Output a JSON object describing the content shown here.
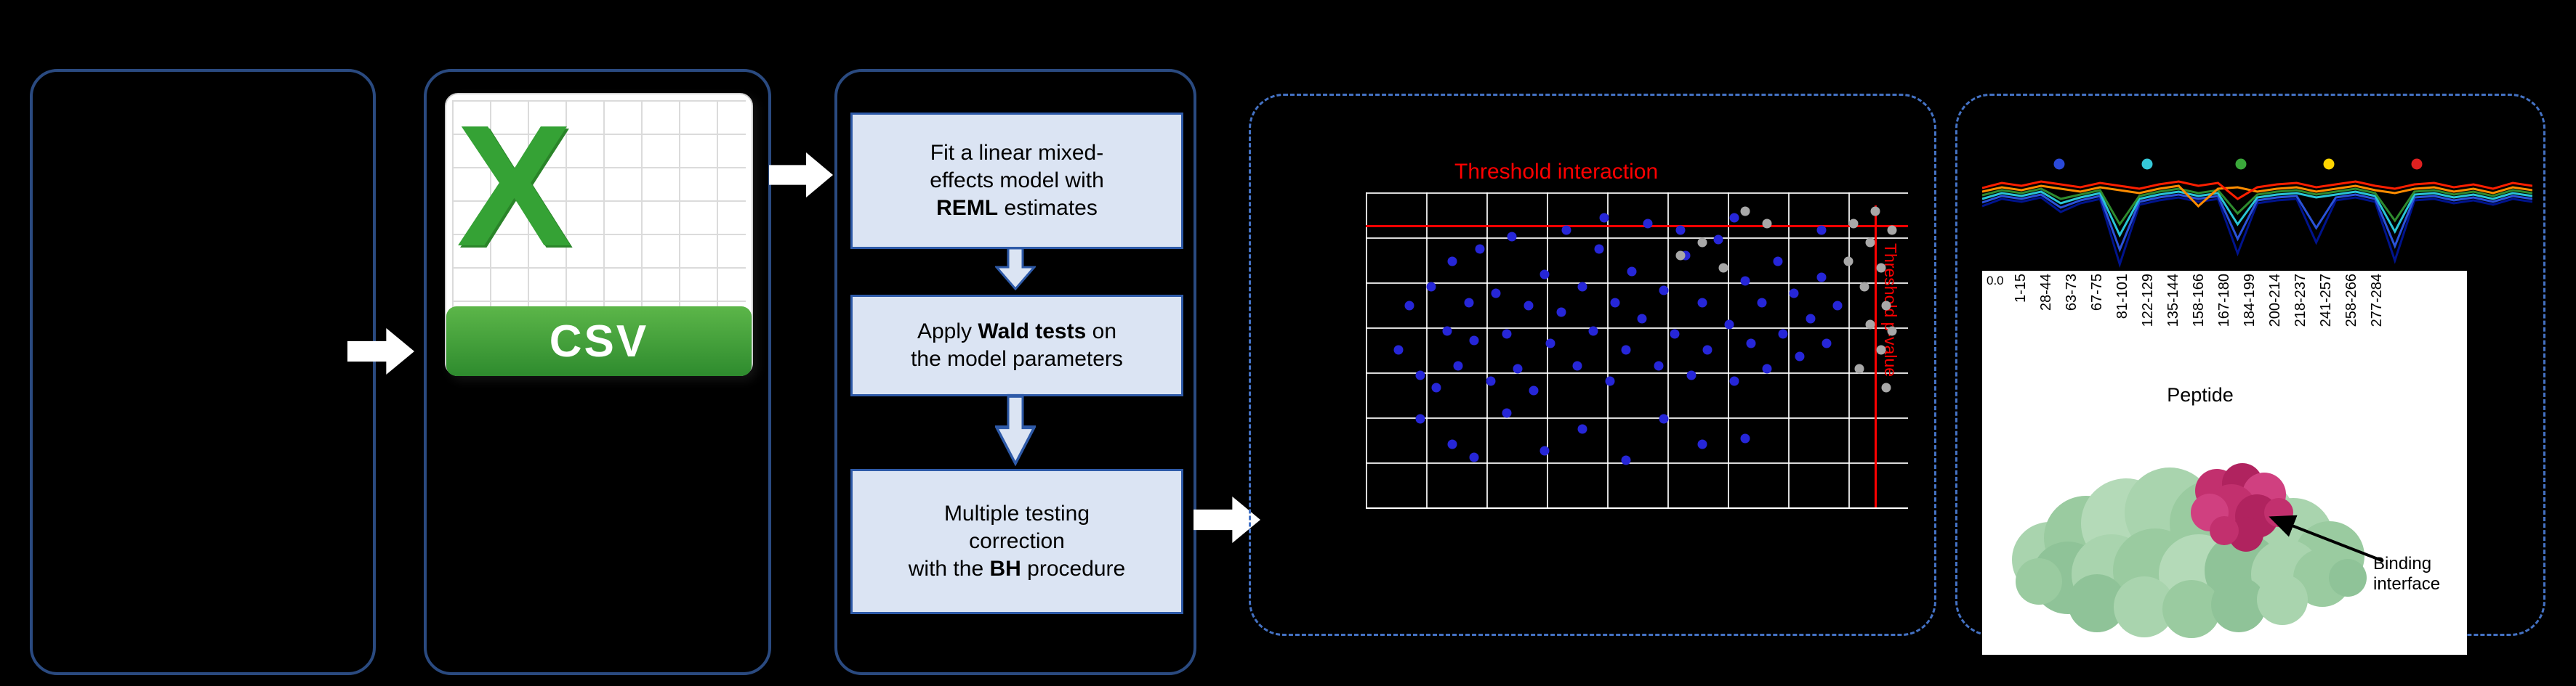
{
  "colors": {
    "background": "#000000",
    "solid_box_border": "#2a4a80",
    "dashed_box_border": "#4472c4",
    "step_fill": "#dbe4f3",
    "step_border": "#2e5aa8",
    "threshold_red": "#ff0000",
    "excel_green": "#35a235",
    "csv_banner_green": "#3e9b35",
    "scatter_blue": "#2626d8",
    "scatter_gray": "#a8a8a8"
  },
  "csv": {
    "x_glyph": "X",
    "label": "CSV"
  },
  "steps": {
    "s1": {
      "l1": "Fit a linear mixed-",
      "l2": "effects model with",
      "l3b": "REML",
      "l3": " estimates"
    },
    "s2": {
      "l1a": "Apply ",
      "l1b": "Wald tests",
      "l1c": " on",
      "l2": "the model parameters"
    },
    "s3": {
      "l1": "Multiple testing",
      "l2": "correction",
      "l3a": "with the ",
      "l3b": "BH",
      "l3c": " procedure"
    }
  },
  "volcano": {
    "title": "Threshold interaction",
    "y_threshold_label": "Threshold p-value",
    "points": [
      [
        6,
        50,
        "b"
      ],
      [
        8,
        36,
        "b"
      ],
      [
        10,
        58,
        "b"
      ],
      [
        12,
        30,
        "b"
      ],
      [
        13,
        62,
        "b"
      ],
      [
        15,
        44,
        "b"
      ],
      [
        16,
        22,
        "b"
      ],
      [
        17,
        55,
        "b"
      ],
      [
        19,
        35,
        "b"
      ],
      [
        20,
        47,
        "b"
      ],
      [
        21,
        18,
        "b"
      ],
      [
        23,
        60,
        "b"
      ],
      [
        24,
        32,
        "b"
      ],
      [
        26,
        45,
        "b"
      ],
      [
        27,
        14,
        "b"
      ],
      [
        28,
        56,
        "b"
      ],
      [
        30,
        36,
        "b"
      ],
      [
        31,
        63,
        "b"
      ],
      [
        33,
        26,
        "b"
      ],
      [
        34,
        48,
        "b"
      ],
      [
        36,
        38,
        "b"
      ],
      [
        37,
        12,
        "b"
      ],
      [
        39,
        55,
        "b"
      ],
      [
        40,
        30,
        "b"
      ],
      [
        42,
        44,
        "b"
      ],
      [
        43,
        18,
        "b"
      ],
      [
        45,
        60,
        "b"
      ],
      [
        46,
        35,
        "b"
      ],
      [
        48,
        50,
        "b"
      ],
      [
        49,
        25,
        "b"
      ],
      [
        51,
        40,
        "b"
      ],
      [
        52,
        10,
        "b"
      ],
      [
        54,
        55,
        "b"
      ],
      [
        55,
        31,
        "b"
      ],
      [
        57,
        45,
        "b"
      ],
      [
        59,
        20,
        "b"
      ],
      [
        60,
        58,
        "b"
      ],
      [
        62,
        35,
        "b"
      ],
      [
        63,
        50,
        "b"
      ],
      [
        65,
        15,
        "b"
      ],
      [
        67,
        42,
        "b"
      ],
      [
        68,
        60,
        "b"
      ],
      [
        70,
        28,
        "b"
      ],
      [
        71,
        48,
        "b"
      ],
      [
        73,
        35,
        "b"
      ],
      [
        74,
        56,
        "b"
      ],
      [
        76,
        22,
        "b"
      ],
      [
        77,
        45,
        "b"
      ],
      [
        79,
        32,
        "b"
      ],
      [
        80,
        52,
        "b"
      ],
      [
        82,
        40,
        "b"
      ],
      [
        84,
        27,
        "b"
      ],
      [
        85,
        48,
        "b"
      ],
      [
        87,
        36,
        "b"
      ],
      [
        16,
        80,
        "b"
      ],
      [
        20,
        84,
        "b"
      ],
      [
        33,
        82,
        "b"
      ],
      [
        48,
        85,
        "b"
      ],
      [
        62,
        80,
        "b"
      ],
      [
        10,
        72,
        "b"
      ],
      [
        40,
        75,
        "b"
      ],
      [
        55,
        72,
        "b"
      ],
      [
        70,
        78,
        "b"
      ],
      [
        26,
        70,
        "b"
      ],
      [
        58,
        12,
        "b"
      ],
      [
        44,
        8,
        "b"
      ],
      [
        68,
        8,
        "b"
      ],
      [
        84,
        12,
        "b"
      ],
      [
        90,
        10,
        "g"
      ],
      [
        93,
        16,
        "g"
      ],
      [
        95,
        24,
        "g"
      ],
      [
        92,
        30,
        "g"
      ],
      [
        96,
        36,
        "g"
      ],
      [
        93,
        42,
        "g"
      ],
      [
        95,
        50,
        "g"
      ],
      [
        91,
        56,
        "g"
      ],
      [
        97,
        12,
        "g"
      ],
      [
        94,
        6,
        "g"
      ],
      [
        89,
        22,
        "g"
      ],
      [
        96,
        62,
        "g"
      ],
      [
        62,
        16,
        "g"
      ],
      [
        66,
        24,
        "g"
      ],
      [
        58,
        20,
        "g"
      ],
      [
        74,
        10,
        "g"
      ],
      [
        70,
        6,
        "g"
      ],
      [
        97,
        44,
        "g"
      ]
    ]
  },
  "profile_chart": {
    "type": "line",
    "y_tick": "0.0",
    "x_title": "Peptide",
    "x_labels": [
      "1-15",
      "28-44",
      "63-73",
      "67-75",
      "81-101",
      "122-129",
      "135-144",
      "158-166",
      "167-180",
      "184-199",
      "200-214",
      "218-237",
      "241-257",
      "258-266",
      "277-284"
    ],
    "markers": [
      {
        "color": "#2a49d8",
        "x": 106
      },
      {
        "color": "#35c8d8",
        "x": 227
      },
      {
        "color": "#3aa83a",
        "x": 356
      },
      {
        "color": "#ffd400",
        "x": 477
      },
      {
        "color": "#e02020",
        "x": 598
      }
    ],
    "series": [
      {
        "name": "navy",
        "color": "#00138c",
        "values": [
          70,
          60,
          64,
          58,
          78,
          66,
          60,
          150,
          68,
          62,
          58,
          64,
          60,
          135,
          66,
          62,
          60,
          120,
          62,
          58,
          64,
          145,
          62,
          60,
          66,
          62,
          68,
          60,
          64
        ]
      },
      {
        "name": "blue",
        "color": "#2a52d8",
        "values": [
          65,
          56,
          60,
          54,
          72,
          62,
          56,
          130,
          64,
          58,
          54,
          60,
          56,
          115,
          62,
          58,
          56,
          100,
          58,
          54,
          60,
          125,
          58,
          56,
          62,
          58,
          64,
          56,
          60
        ]
      },
      {
        "name": "cyan",
        "color": "#29c5d6",
        "values": [
          60,
          52,
          56,
          50,
          66,
          58,
          52,
          110,
          60,
          54,
          50,
          56,
          52,
          95,
          58,
          54,
          52,
          58,
          54,
          50,
          56,
          105,
          54,
          52,
          58,
          54,
          60,
          52,
          56
        ]
      },
      {
        "name": "green",
        "color": "#2e8b2e",
        "values": [
          55,
          48,
          52,
          46,
          60,
          54,
          48,
          95,
          56,
          50,
          46,
          52,
          48,
          80,
          54,
          50,
          48,
          54,
          50,
          46,
          52,
          90,
          50,
          48,
          54,
          50,
          56,
          48,
          52
        ]
      },
      {
        "name": "orange",
        "color": "#ff8c00",
        "values": [
          50,
          44,
          48,
          42,
          46,
          50,
          44,
          48,
          52,
          46,
          42,
          70,
          46,
          44,
          50,
          46,
          44,
          50,
          46,
          42,
          48,
          52,
          46,
          44,
          50,
          46,
          52,
          44,
          48
        ]
      },
      {
        "name": "red",
        "color": "#ff1f00",
        "values": [
          45,
          38,
          42,
          36,
          40,
          44,
          38,
          42,
          46,
          40,
          36,
          42,
          38,
          60,
          44,
          40,
          38,
          44,
          40,
          36,
          42,
          46,
          40,
          38,
          44,
          40,
          46,
          38,
          42
        ]
      }
    ]
  },
  "protein": {
    "annotation": "Binding interface"
  }
}
